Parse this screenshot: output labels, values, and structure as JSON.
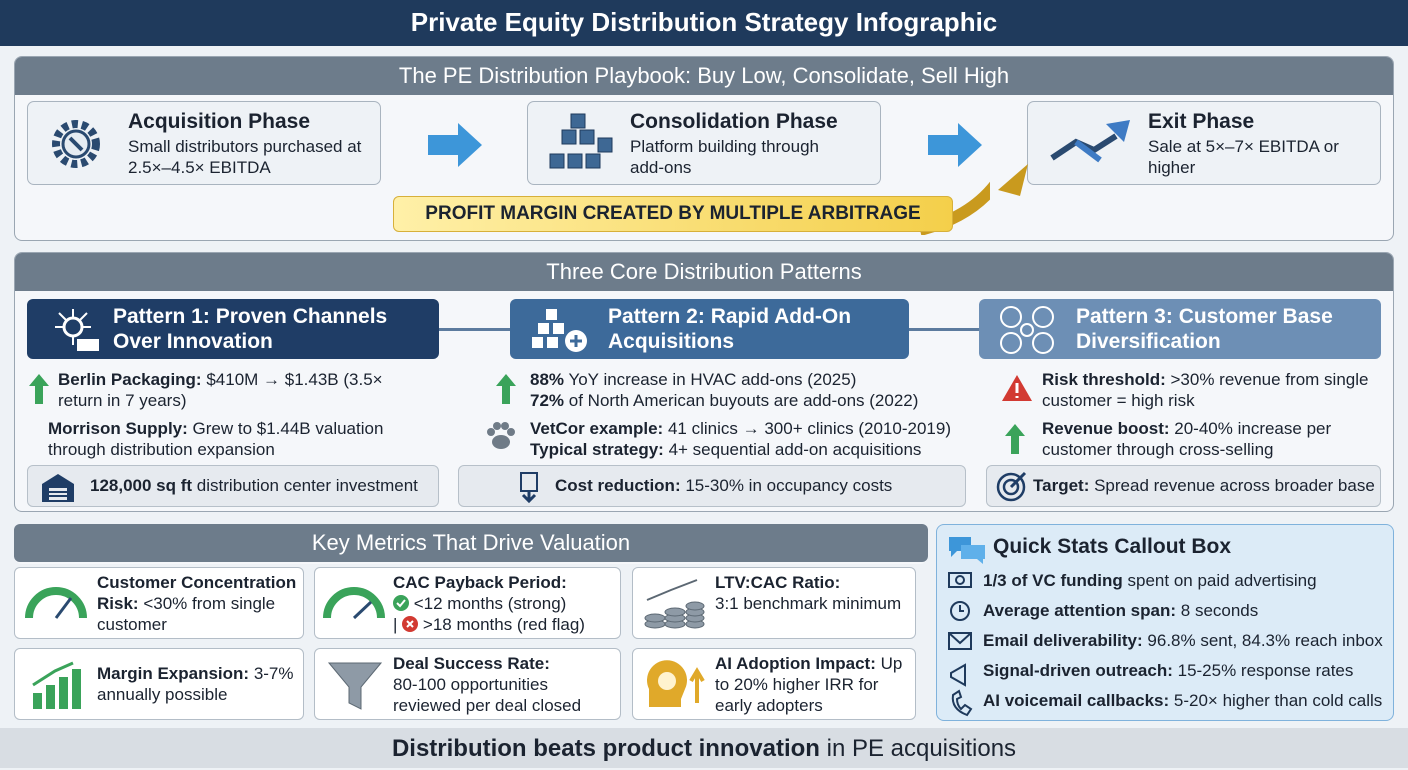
{
  "header": {
    "title": "Private Equity Distribution Strategy Infographic"
  },
  "playbook": {
    "title": "The PE Distribution Playbook: Buy Low, Consolidate, Sell High",
    "phases": [
      {
        "title": "Acquisition Phase",
        "text": "Small distributors purchased at 2.5×–4.5× EBITDA"
      },
      {
        "title": "Consolidation Phase",
        "text": "Platform building through add-ons"
      },
      {
        "title": "Exit Phase",
        "text": "Sale at 5×–7× EBITDA or higher"
      }
    ],
    "banner": "PROFIT MARGIN CREATED BY MULTIPLE ARBITRAGE"
  },
  "patterns": {
    "title": "Three Core Distribution Patterns",
    "items": [
      {
        "title": "Pattern 1: Proven Channels Over Innovation",
        "points": [
          {
            "bold": "Berlin Packaging:",
            "text": "$410M → $1.43B (3.5× return in 7 years)"
          },
          {
            "bold": "Morrison Supply:",
            "text": "Grew to $1.44B valuation through distribution expansion"
          }
        ],
        "footer": {
          "bold": "128,000 sq ft",
          "text": "distribution center investment"
        }
      },
      {
        "title": "Pattern 2: Rapid Add-On Acquisitions",
        "points": [
          {
            "bold": "88%",
            "text": "YoY increase in HVAC add-ons (2025)"
          },
          {
            "bold": "72%",
            "text": "of North American buyouts are add-ons (2022)"
          },
          {
            "bold": "VetCor example:",
            "text": "41 clinics → 300+ clinics (2010-2019)"
          },
          {
            "bold": "Typical strategy:",
            "text": "4+ sequential add-on acquisitions"
          }
        ],
        "footer": {
          "bold": "Cost reduction:",
          "text": "15-30% in occupancy costs"
        }
      },
      {
        "title": "Pattern 3: Customer Base Diversification",
        "points": [
          {
            "bold": "Risk threshold:",
            "text": ">30% revenue from single customer = high risk"
          },
          {
            "bold": "Revenue boost:",
            "text": "20-40% increase per customer through cross-selling"
          }
        ],
        "footer": {
          "bold": "Target:",
          "text": "Spread revenue across broader base"
        }
      }
    ]
  },
  "metrics": {
    "title": "Key Metrics That Drive Valuation",
    "cards": [
      {
        "bold": "Customer Concentration Risk:",
        "text": "<30% from single customer"
      },
      {
        "bold": "CAC Payback Period:",
        "good": "<12 months (strong)",
        "separator": "|",
        "bad": ">18 months (red flag)"
      },
      {
        "bold": "LTV:CAC Ratio:",
        "text": "3:1 benchmark minimum"
      },
      {
        "bold": "Margin Expansion:",
        "text": "3-7% annually possible"
      },
      {
        "bold": "Deal Success Rate:",
        "text": "80-100 opportunities reviewed per deal closed"
      },
      {
        "bold": "AI Adoption Impact:",
        "text": "Up to 20% higher IRR for early adopters"
      }
    ]
  },
  "quick_stats": {
    "title": "Quick Stats Callout Box",
    "items": [
      {
        "bold": "1/3 of VC funding",
        "text": "spent on paid advertising"
      },
      {
        "bold": "Average attention span:",
        "text": "8 seconds"
      },
      {
        "bold": "Email deliverability:",
        "text": "96.8% sent, 84.3% reach inbox"
      },
      {
        "bold": "Signal-driven outreach:",
        "text": "15-25% response rates"
      },
      {
        "bold": "AI voicemail callbacks:",
        "text": "5-20× higher than cold calls"
      }
    ]
  },
  "footer": {
    "bold": "Distribution beats product innovation",
    "text": "in PE acquisitions"
  }
}
